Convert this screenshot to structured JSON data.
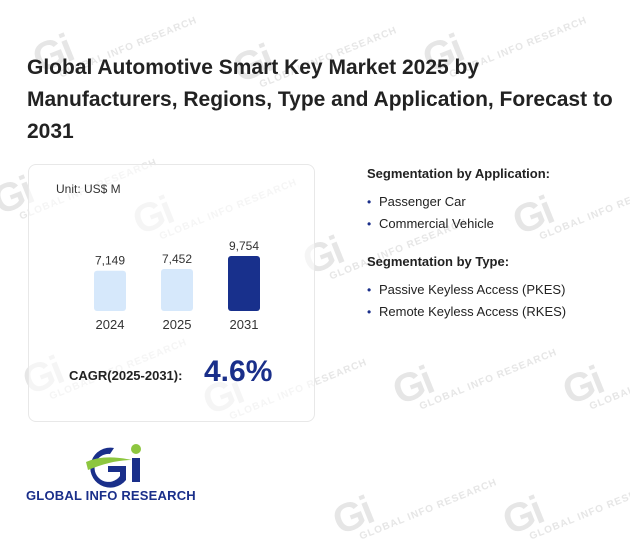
{
  "title": "Global Automotive Smart Key Market 2025 by Manufacturers, Regions, Type and Application, Forecast to 2031",
  "watermark_text": "GLOBAL INFO RESEARCH",
  "unit_label": "Unit: US$ M",
  "chart_data": {
    "type": "bar",
    "categories": [
      "2024",
      "2025",
      "2031"
    ],
    "values": [
      7149,
      7452,
      9754
    ],
    "value_labels": [
      "7,149",
      "7,452",
      "9,754"
    ],
    "title": "",
    "xlabel": "",
    "ylabel": "",
    "colors": [
      "#d6e8fb",
      "#d6e8fb",
      "#18308c"
    ],
    "grid": false
  },
  "cagr": {
    "label": "CAGR(2025-2031):",
    "value": "4.6%"
  },
  "segmentation_application": {
    "title": "Segmentation by Application:",
    "items": [
      "Passenger Car",
      "Commercial Vehicle"
    ]
  },
  "segmentation_type": {
    "title": "Segmentation by Type:",
    "items": [
      "Passive Keyless Access (PKES)",
      "Remote Keyless Access (RKES)"
    ]
  },
  "logo": {
    "text": "GLOBAL INFO RESEARCH",
    "colors": {
      "blue": "#1a2f8a",
      "green": "#8dc63f"
    }
  }
}
